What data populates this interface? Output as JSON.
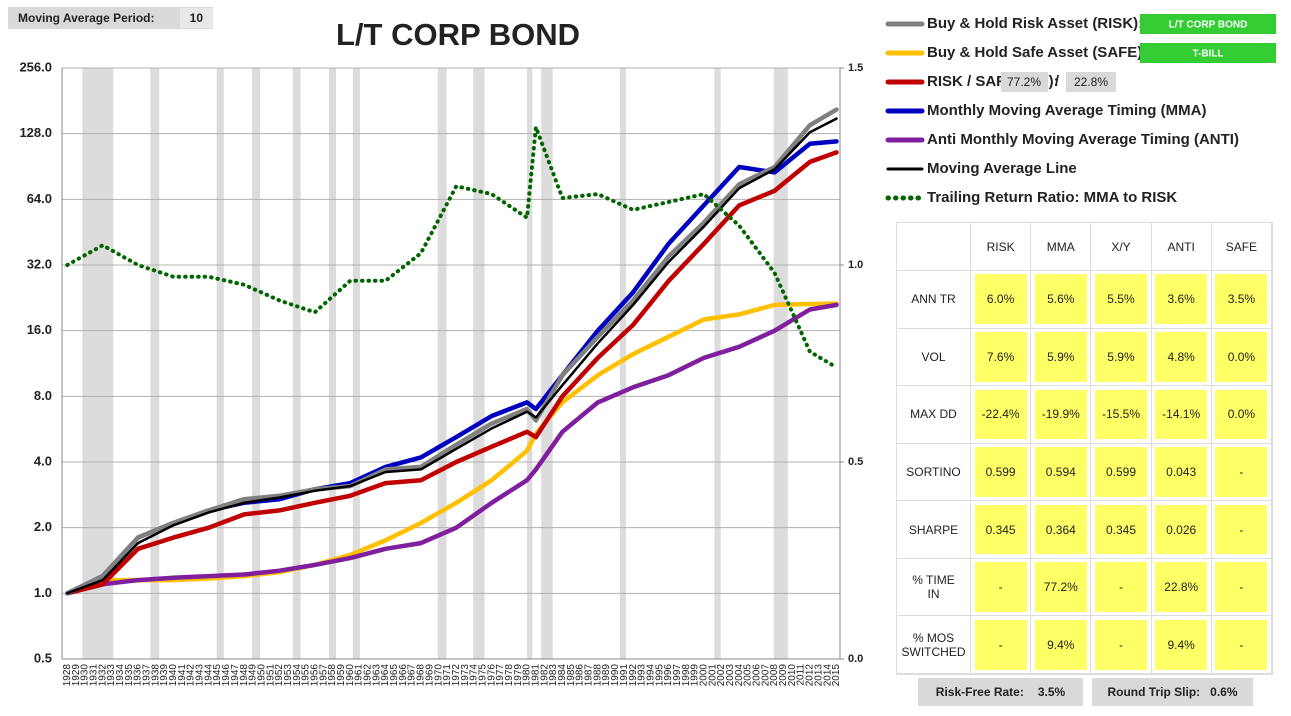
{
  "moving_average_period": {
    "label": "Moving Average Period:",
    "value": 10
  },
  "settings": {
    "risk_asset": "L/T CORP BOND",
    "safe_asset": "T-BILL",
    "risk_weight": "77.2%",
    "separator": "/",
    "safe_weight": "22.8%"
  },
  "chart_data": {
    "type": "line",
    "title": "L/T CORP BOND",
    "yscale": "log",
    "grid": true,
    "x": [
      1928,
      1932,
      1936,
      1940,
      1944,
      1948,
      1952,
      1956,
      1960,
      1964,
      1968,
      1972,
      1976,
      1980,
      1981,
      1984,
      1988,
      1992,
      1996,
      2000,
      2004,
      2008,
      2012,
      2015
    ],
    "xlim": [
      1927.4,
      2015.4
    ],
    "xticks": [
      1928,
      1929,
      1930,
      1931,
      1932,
      1933,
      1934,
      1935,
      1936,
      1937,
      1938,
      1939,
      1940,
      1941,
      1942,
      1943,
      1944,
      1945,
      1946,
      1947,
      1948,
      1949,
      1950,
      1951,
      1952,
      1953,
      1954,
      1955,
      1956,
      1957,
      1958,
      1959,
      1960,
      1961,
      1962,
      1963,
      1964,
      1965,
      1966,
      1967,
      1968,
      1969,
      1970,
      1971,
      1972,
      1973,
      1974,
      1975,
      1976,
      1977,
      1978,
      1979,
      1980,
      1981,
      1982,
      1983,
      1984,
      1985,
      1986,
      1987,
      1988,
      1989,
      1990,
      1991,
      1992,
      1993,
      1994,
      1995,
      1996,
      1997,
      1998,
      1999,
      2000,
      2001,
      2002,
      2003,
      2004,
      2005,
      2006,
      2007,
      2008,
      2009,
      2010,
      2011,
      2012,
      2013,
      2014,
      2015
    ],
    "ylim": [
      0.5,
      256
    ],
    "yticks": [
      0.5,
      {
        "value": 1,
        "label": "1.0"
      },
      {
        "value": 2,
        "label": "2.0"
      },
      {
        "value": 4,
        "label": "4.0"
      },
      {
        "value": 8,
        "label": "8.0"
      },
      {
        "value": 16,
        "label": "16.0"
      },
      {
        "value": 32,
        "label": "32.0"
      },
      {
        "value": 64,
        "label": "64.0"
      },
      {
        "value": 128,
        "label": "128.0"
      },
      {
        "value": 256,
        "label": "256.0"
      }
    ],
    "y2lim": [
      0,
      1.5
    ],
    "y2ticks": [
      {
        "value": 0,
        "label": "0.0"
      },
      0.5,
      {
        "value": 1,
        "label": "1.0"
      },
      1.5
    ],
    "shaded_periods": [
      [
        1929.7,
        1933.2
      ],
      [
        1937.4,
        1938.4
      ],
      [
        1944.9,
        1945.7
      ],
      [
        1948.9,
        1949.8
      ],
      [
        1953.5,
        1954.4
      ],
      [
        1957.6,
        1958.4
      ],
      [
        1960.3,
        1961.1
      ],
      [
        1969.9,
        1970.9
      ],
      [
        1973.9,
        1975.2
      ],
      [
        1980,
        1980.6
      ],
      [
        1981.6,
        1982.9
      ],
      [
        1990.5,
        1991.2
      ],
      [
        2001.2,
        2001.9
      ],
      [
        2007.9,
        2009.5
      ]
    ],
    "series": [
      {
        "name": "Buy & Hold Risk Asset (RISK):",
        "color": "#808080",
        "values": [
          1.0,
          1.2,
          1.8,
          2.1,
          2.4,
          2.7,
          2.8,
          3.0,
          3.1,
          3.7,
          3.8,
          4.8,
          6.0,
          7.0,
          6.2,
          10,
          15,
          22,
          35,
          50,
          75,
          90,
          140,
          165
        ]
      },
      {
        "name": "Buy & Hold Safe Asset (SAFE):",
        "color": "#ffc000",
        "values": [
          1.0,
          1.15,
          1.15,
          1.15,
          1.17,
          1.2,
          1.25,
          1.35,
          1.5,
          1.75,
          2.1,
          2.6,
          3.3,
          4.5,
          5.4,
          7.5,
          10,
          12.5,
          15,
          18,
          19,
          21,
          21.2,
          21.3
        ]
      },
      {
        "name": "RISK / SAFE (X/Y):",
        "color": "#c00000",
        "values": [
          1.0,
          1.1,
          1.6,
          1.8,
          2.0,
          2.3,
          2.4,
          2.6,
          2.8,
          3.2,
          3.3,
          4.0,
          4.7,
          5.5,
          5.2,
          8,
          12,
          17,
          27,
          40,
          60,
          70,
          95,
          105
        ]
      },
      {
        "name": "Monthly Moving Average Timing (MMA)",
        "color": "#0000c0",
        "values": [
          1.0,
          1.2,
          1.8,
          2.1,
          2.4,
          2.6,
          2.7,
          3.0,
          3.2,
          3.8,
          4.2,
          5.2,
          6.5,
          7.5,
          7.0,
          10,
          16,
          24,
          40,
          60,
          90,
          85,
          115,
          118
        ]
      },
      {
        "name": "Anti Monthly Moving Average Timing (ANTI)",
        "color": "#7f1f9f",
        "values": [
          1.0,
          1.1,
          1.15,
          1.18,
          1.2,
          1.22,
          1.27,
          1.35,
          1.45,
          1.6,
          1.7,
          2.0,
          2.6,
          3.3,
          3.7,
          5.5,
          7.5,
          8.8,
          10,
          12,
          13.5,
          16,
          20,
          21
        ]
      },
      {
        "name": "Moving Average Line",
        "color": "#000000",
        "values": [
          1.0,
          1.15,
          1.7,
          2.05,
          2.35,
          2.6,
          2.75,
          2.95,
          3.1,
          3.6,
          3.7,
          4.6,
          5.7,
          6.8,
          6.4,
          9,
          14,
          21,
          33,
          48,
          72,
          88,
          130,
          150
        ]
      },
      {
        "name": "Trailing Return Ratio: MMA to RISK",
        "color": "#006400",
        "style": "dotted",
        "axis": "y2",
        "values": [
          1.0,
          1.05,
          1.0,
          0.97,
          0.97,
          0.95,
          0.91,
          0.88,
          0.96,
          0.96,
          1.03,
          1.2,
          1.18,
          1.12,
          1.35,
          1.17,
          1.18,
          1.14,
          1.16,
          1.18,
          1.1,
          0.98,
          0.78,
          0.74
        ]
      }
    ]
  },
  "stats_table": {
    "columns": [
      "RISK",
      "MMA",
      "X/Y",
      "ANTI",
      "SAFE"
    ],
    "rows": [
      {
        "label": "ANN TR",
        "cells": [
          "6.0%",
          "5.6%",
          "5.5%",
          "3.6%",
          "3.5%"
        ]
      },
      {
        "label": "VOL",
        "cells": [
          "7.6%",
          "5.9%",
          "5.9%",
          "4.8%",
          "0.0%"
        ]
      },
      {
        "label": "MAX DD",
        "cells": [
          "-22.4%",
          "-19.9%",
          "-15.5%",
          "-14.1%",
          "0.0%"
        ]
      },
      {
        "label": "SORTINO",
        "cells": [
          "0.599",
          "0.594",
          "0.599",
          "0.043",
          "-"
        ]
      },
      {
        "label": "SHARPE",
        "cells": [
          "0.345",
          "0.364",
          "0.345",
          "0.026",
          "-"
        ]
      },
      {
        "label": "% TIME IN",
        "cells": [
          "-",
          "77.2%",
          "-",
          "22.8%",
          "-"
        ]
      },
      {
        "label": "% MOS SWITCHED",
        "cells": [
          "-",
          "9.4%",
          "-",
          "9.4%",
          "-"
        ]
      }
    ]
  },
  "footer": [
    {
      "label": "Risk-Free Rate:",
      "value": "3.5%"
    },
    {
      "label": "Round Trip Slip:",
      "value": "0.6%"
    }
  ]
}
